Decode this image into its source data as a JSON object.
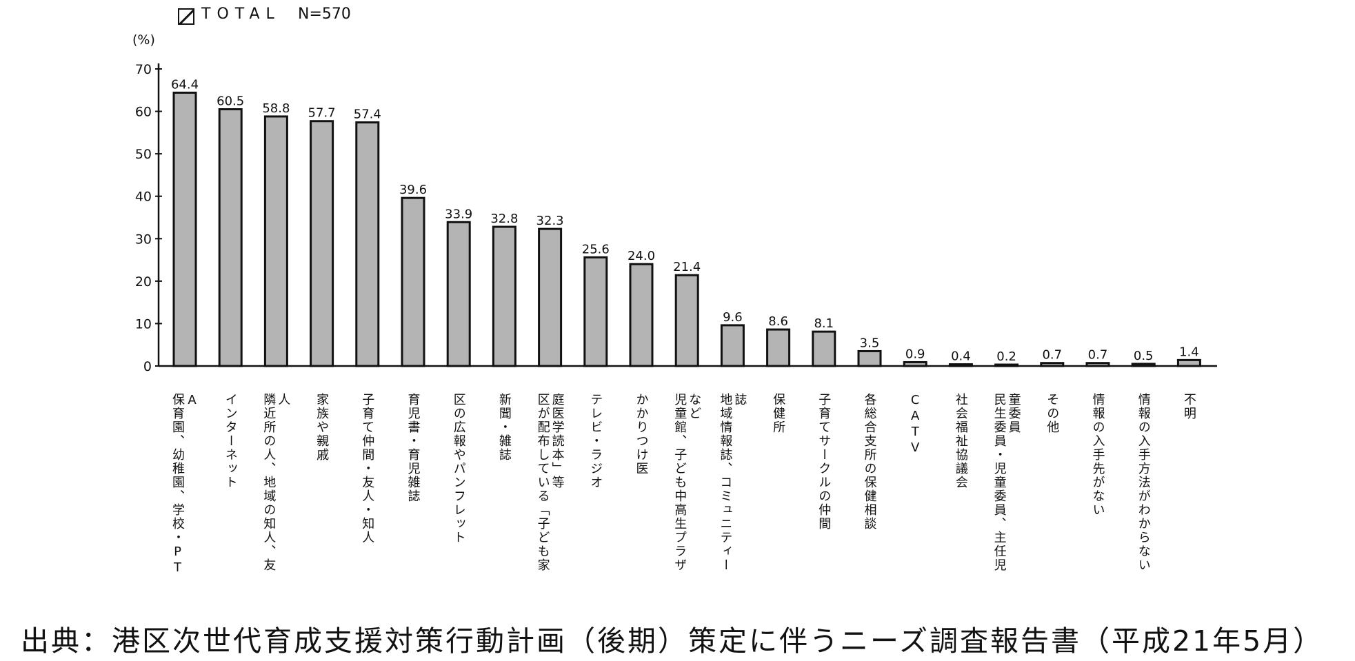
{
  "legend": {
    "series_label": "TOTAL",
    "n_label": "N=570"
  },
  "source": "出典：港区次世代育成支援対策行動計画（後期）策定に伴うニーズ調査報告書（平成21年5月）",
  "colors": {
    "bar": "#b4b4b4",
    "stroke": "#111111"
  },
  "chart_data": {
    "type": "bar",
    "ylabel": "(%)",
    "ylim": [
      0,
      70
    ],
    "yticks": [
      0,
      10,
      20,
      30,
      40,
      50,
      60,
      70
    ],
    "grid": false,
    "legend_position": "top-left",
    "series": [
      {
        "name": "TOTAL",
        "values": [
          64.4,
          60.5,
          58.8,
          57.7,
          57.4,
          39.6,
          33.9,
          32.8,
          32.3,
          25.6,
          24.0,
          21.4,
          9.6,
          8.6,
          8.1,
          3.5,
          0.9,
          0.4,
          0.2,
          0.7,
          0.7,
          0.5,
          1.4
        ]
      }
    ],
    "value_labels": [
      "64.4",
      "60.5",
      "58.8",
      "57.7",
      "57.4",
      "39.6",
      "33.9",
      "32.8",
      "32.3",
      "25.6",
      "24.0",
      "21.4",
      "9.6",
      "8.6",
      "8.1",
      "3.5",
      "0.9",
      "0.4",
      "0.2",
      "0.7",
      "0.7",
      "0.5",
      "1.4"
    ],
    "categories": [
      "保育園、幼稚園、学校・PTA",
      "インターネット",
      "隣近所の人、地域の知人、友人",
      "家族や親戚",
      "子育て仲間・友人・知人",
      "育児書・育児雑誌",
      "区の広報やパンフレット",
      "新聞・雑誌",
      "区が配布している「子ども家庭医学読本」等",
      "テレビ・ラジオ",
      "かかりつけ医",
      "児童館、子ども中高生プラザなど",
      "地域情報誌、コミュニティー誌",
      "保健所",
      "子育てサークルの仲間",
      "各総合支所の保健相談",
      "CATV",
      "社会福祉協議会",
      "民生委員・児童委員、主任児童委員",
      "その他",
      "情報の入手先がない",
      "情報の入手方法がわからない",
      "不明"
    ],
    "category_columns": [
      [
        "保育園、幼稚園、学校・PT",
        "A"
      ],
      [
        "インターネット"
      ],
      [
        "隣近所の人、地域の知人、友",
        "人"
      ],
      [
        "家族や親戚"
      ],
      [
        "子育て仲間・友人・知人"
      ],
      [
        "育児書・育児雑誌"
      ],
      [
        "区の広報やパンフレット"
      ],
      [
        "新聞・雑誌"
      ],
      [
        "区が配布している「子ども家",
        "庭医学読本」等"
      ],
      [
        "テレビ・ラジオ"
      ],
      [
        "かかりつけ医"
      ],
      [
        "児童館、子ども中高生プラザ",
        "など"
      ],
      [
        "地域情報誌、コミュニティー",
        "誌"
      ],
      [
        "保健所"
      ],
      [
        "子育てサークルの仲間"
      ],
      [
        "各総合支所の保健相談"
      ],
      [
        "CATV"
      ],
      [
        "社会福祉協議会"
      ],
      [
        "民生委員・児童委員、主任児",
        "童委員"
      ],
      [
        "その他"
      ],
      [
        "情報の入手先がない"
      ],
      [
        "情報の入手方法がわからない"
      ],
      [
        "不明"
      ]
    ]
  }
}
